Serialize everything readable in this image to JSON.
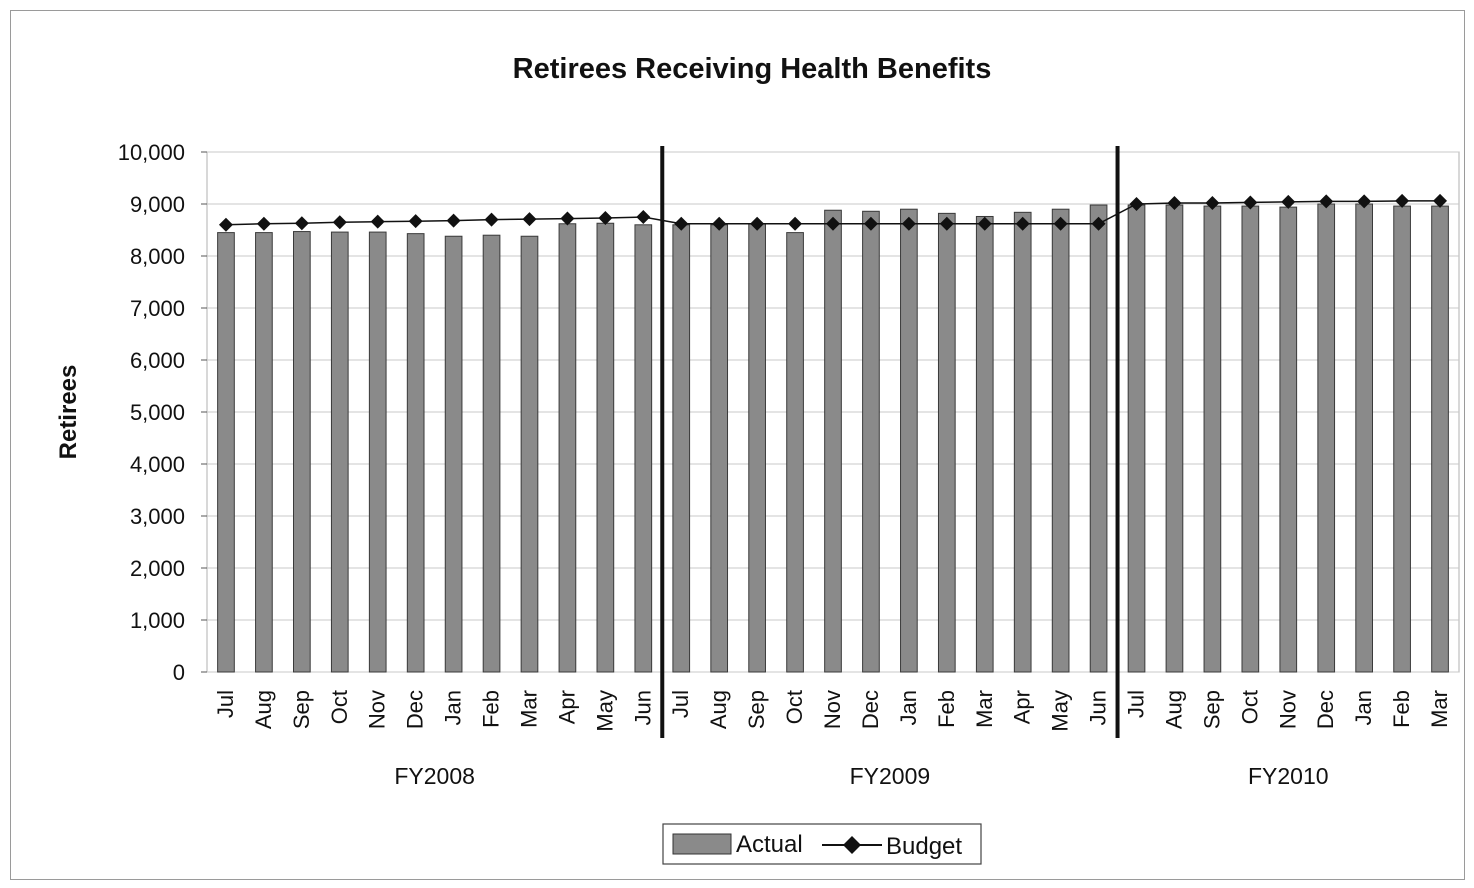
{
  "chart_data": {
    "type": "bar",
    "title": "Retirees Receiving Health Benefits",
    "xlabel": "",
    "ylabel": "Retirees",
    "ylim": [
      0,
      10000
    ],
    "yticks": [
      "0",
      "1,000",
      "2,000",
      "3,000",
      "4,000",
      "5,000",
      "6,000",
      "7,000",
      "8,000",
      "9,000",
      "10,000"
    ],
    "grid": true,
    "legend_position": "bottom",
    "groups": [
      {
        "label": "FY2008",
        "count": 12
      },
      {
        "label": "FY2009",
        "count": 12
      },
      {
        "label": "FY2010",
        "count": 9
      }
    ],
    "categories": [
      "Jul",
      "Aug",
      "Sep",
      "Oct",
      "Nov",
      "Dec",
      "Jan",
      "Feb",
      "Mar",
      "Apr",
      "May",
      "Jun",
      "Jul",
      "Aug",
      "Sep",
      "Oct",
      "Nov",
      "Dec",
      "Jan",
      "Feb",
      "Mar",
      "Apr",
      "May",
      "Jun",
      "Jul",
      "Aug",
      "Sep",
      "Oct",
      "Nov",
      "Dec",
      "Jan",
      "Feb",
      "Mar"
    ],
    "series": [
      {
        "name": "Actual",
        "kind": "bar",
        "color": "#8a8a8a",
        "values": [
          8450,
          8450,
          8470,
          8460,
          8460,
          8430,
          8380,
          8400,
          8380,
          8620,
          8630,
          8600,
          8600,
          8600,
          8620,
          8450,
          8880,
          8860,
          8900,
          8820,
          8760,
          8840,
          8900,
          8980,
          8980,
          8980,
          8960,
          8960,
          8940,
          9000,
          9000,
          8960,
          8960
        ]
      },
      {
        "name": "Budget",
        "kind": "line",
        "color": "#111111",
        "marker": "diamond",
        "values": [
          8600,
          8620,
          8630,
          8650,
          8660,
          8670,
          8680,
          8700,
          8710,
          8720,
          8730,
          8750,
          8620,
          8620,
          8620,
          8620,
          8620,
          8620,
          8620,
          8620,
          8620,
          8620,
          8620,
          8620,
          9000,
          9020,
          9020,
          9030,
          9040,
          9050,
          9050,
          9060,
          9060
        ]
      }
    ]
  }
}
